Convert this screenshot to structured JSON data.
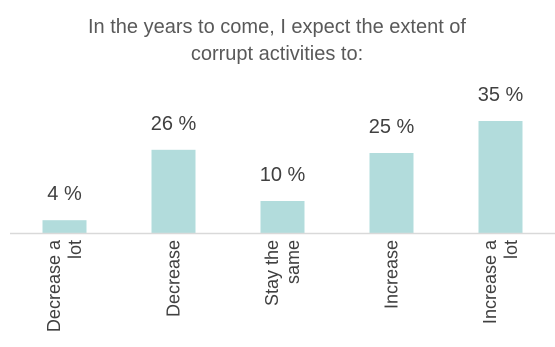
{
  "chart_data": {
    "type": "bar",
    "title_lines": [
      "In the years to come, I expect the extent of",
      "corrupt activities to:"
    ],
    "categories": [
      [
        "Decrease a",
        "lot"
      ],
      [
        "Decrease"
      ],
      [
        "Stay the",
        "same"
      ],
      [
        "Increase"
      ],
      [
        "Increase a",
        "lot"
      ]
    ],
    "values": [
      4,
      26,
      10,
      25,
      35
    ],
    "value_labels": [
      "4 %",
      "26 %",
      "10 %",
      "25 %",
      "35 %"
    ],
    "ylim": [
      0,
      40
    ],
    "grid": false,
    "legend": "none",
    "bar_color": "#b2dcdc",
    "axis_color": "#d9d9d9",
    "text_color": "#404040"
  }
}
